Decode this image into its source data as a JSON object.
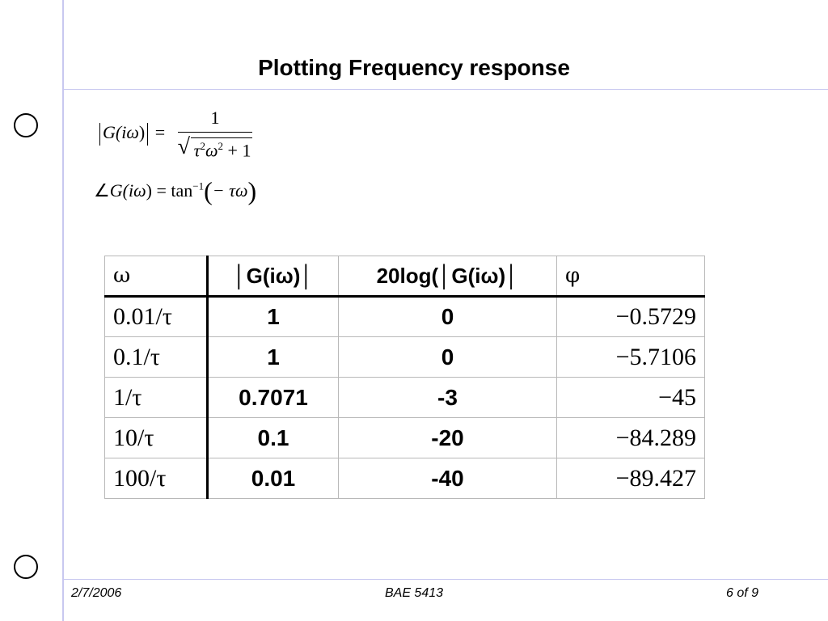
{
  "slide": {
    "title": "Plotting Frequency response"
  },
  "formulas": {
    "magnitude_lhs_prefix": "G(",
    "magnitude_lhs_var": "iω",
    "magnitude_lhs_suffix": ")",
    "equals": "=",
    "numerator": "1",
    "den_tau": "τ",
    "den_tau_exp": "2",
    "den_omega": "ω",
    "den_omega_exp": "2",
    "den_rest": " + 1",
    "phase_angle_symbol": "∠",
    "phase_lhs": "G(",
    "phase_lhs_var": "iω",
    "phase_lhs_suffix": ")",
    "phase_equals": " = ",
    "tan": "tan",
    "tan_exp": "−1",
    "phase_arg": "− τω"
  },
  "table": {
    "headers": [
      "ω",
      "│G(iω)│",
      "20log(│G(iω)│",
      "φ"
    ],
    "rows": [
      [
        "0.01/τ",
        "1",
        "0",
        "−0.5729"
      ],
      [
        "0.1/τ",
        "1",
        "0",
        "−5.7106"
      ],
      [
        "1/τ",
        "0.7071",
        "-3",
        "−45"
      ],
      [
        "10/τ",
        "0.1",
        "-20",
        "−84.289"
      ],
      [
        "100/τ",
        "0.01",
        "-40",
        "−89.427"
      ]
    ]
  },
  "footer": {
    "date": "2/7/2006",
    "course": "BAE 5413",
    "page": "6 of 9"
  },
  "colors": {
    "rule_line": "#c8c8f0",
    "table_border": "#b8b8b8"
  }
}
